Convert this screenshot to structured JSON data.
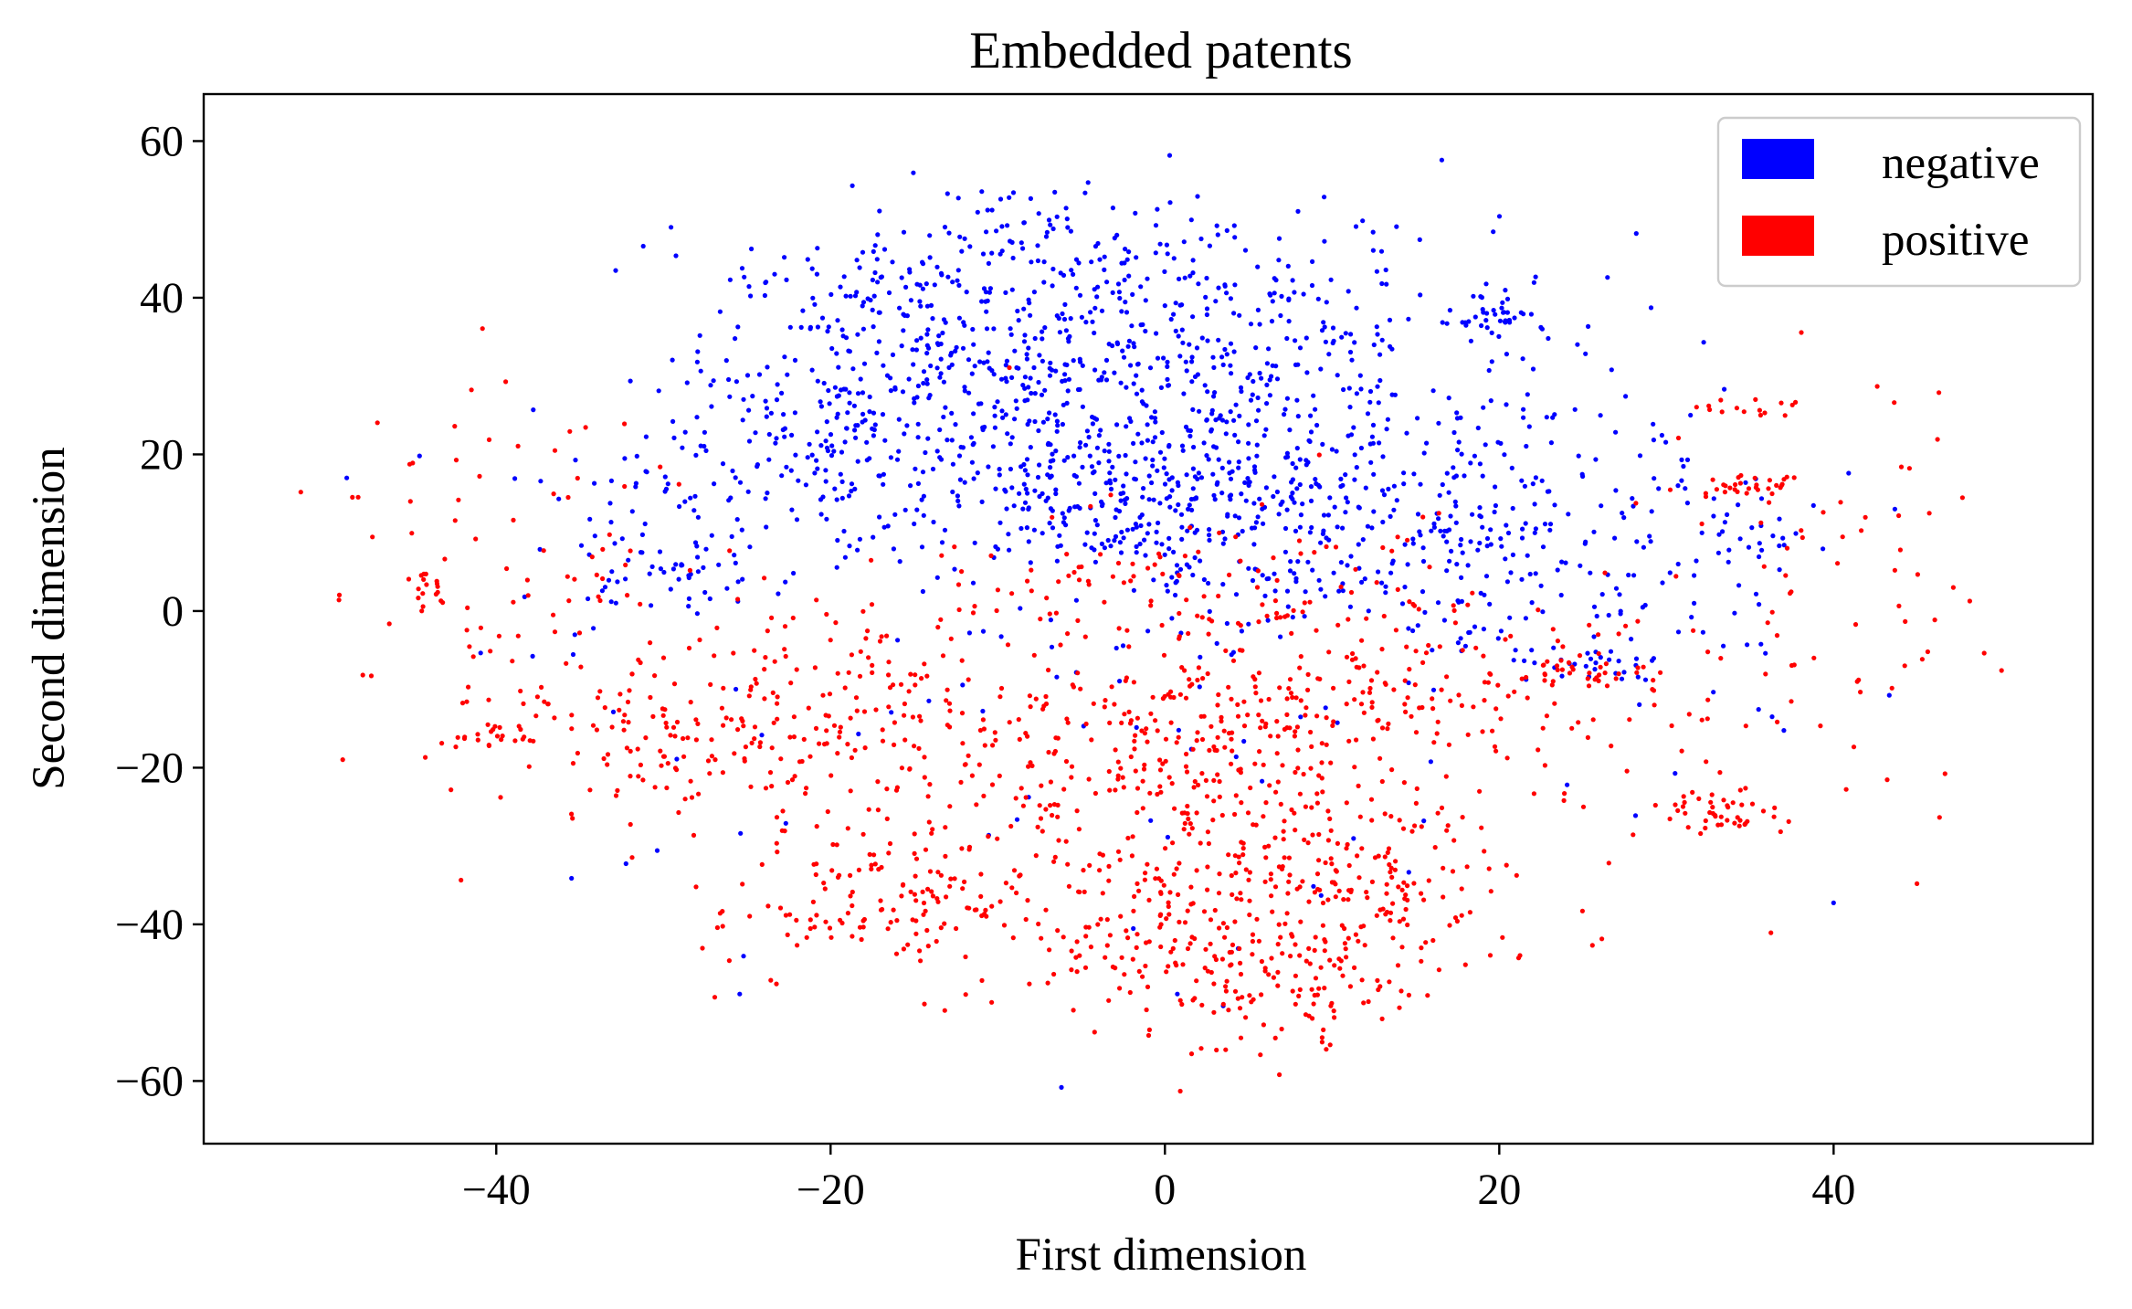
{
  "chart_data": {
    "type": "scatter",
    "title": "Embedded patents",
    "xlabel": "First dimension",
    "ylabel": "Second dimension",
    "xlim": [
      -57.5,
      55.5
    ],
    "ylim": [
      -68,
      66
    ],
    "xticks": [
      -40,
      -20,
      0,
      20,
      40
    ],
    "yticks": [
      -60,
      -40,
      -20,
      0,
      20,
      40,
      60
    ],
    "xtick_labels": [
      "−40",
      "−20",
      "0",
      "20",
      "40"
    ],
    "ytick_labels": [
      "−60",
      "−40",
      "−20",
      "0",
      "20",
      "40",
      "60"
    ],
    "grid": false,
    "legend_position": "top-right",
    "series": [
      {
        "name": "negative",
        "color": "#0000ff",
        "clusters": [
          {
            "cx": -2,
            "cy": 15,
            "sx": 6,
            "sy": 5,
            "n": 260
          },
          {
            "cx": -12,
            "cy": 30,
            "sx": 8,
            "sy": 8,
            "n": 320
          },
          {
            "cx": 6,
            "cy": 30,
            "sx": 9,
            "sy": 9,
            "n": 300
          },
          {
            "cx": -20,
            "cy": 20,
            "sx": 6,
            "sy": 8,
            "n": 150
          },
          {
            "cx": 15,
            "cy": 15,
            "sx": 7,
            "sy": 6,
            "n": 150
          },
          {
            "cx": -4,
            "cy": 44,
            "sx": 9,
            "sy": 5,
            "n": 120
          },
          {
            "cx": 20,
            "cy": 38,
            "sx": 1.2,
            "sy": 1.2,
            "n": 30
          },
          {
            "cx": 25,
            "cy": -7,
            "sx": 2.5,
            "sy": 1.2,
            "n": 30
          },
          {
            "cx": -28,
            "cy": 5,
            "sx": 2,
            "sy": 1.5,
            "n": 25
          },
          {
            "cx": 18,
            "cy": 10,
            "sx": 2,
            "sy": 1.5,
            "n": 20
          },
          {
            "cx": -30,
            "cy": 10,
            "sx": 5,
            "sy": 8,
            "n": 60
          },
          {
            "cx": 30,
            "cy": 10,
            "sx": 5,
            "sy": 10,
            "n": 60
          },
          {
            "cx": 36,
            "cy": 9,
            "sx": 2,
            "sy": 1,
            "n": 15
          },
          {
            "cx": 12,
            "cy": 3,
            "sx": 10,
            "sy": 4,
            "n": 140
          },
          {
            "cx": -16,
            "cy": 40,
            "sx": 5,
            "sy": 4,
            "n": 60
          },
          {
            "cx": -10,
            "cy": 50,
            "sx": 3,
            "sy": 2,
            "n": 25
          },
          {
            "cx": 0,
            "cy": 0,
            "sx": 25,
            "sy": 25,
            "n": 150
          }
        ]
      },
      {
        "name": "positive",
        "color": "#ff0000",
        "clusters": [
          {
            "cx": 1,
            "cy": -20,
            "sx": 7,
            "sy": 10,
            "n": 330
          },
          {
            "cx": -15,
            "cy": -38,
            "sx": 5,
            "sy": 4,
            "n": 140
          },
          {
            "cx": 1,
            "cy": -42,
            "sx": 4,
            "sy": 5,
            "n": 110
          },
          {
            "cx": 12,
            "cy": -35,
            "sx": 4,
            "sy": 6,
            "n": 160
          },
          {
            "cx": 7,
            "cy": -48,
            "sx": 4,
            "sy": 4,
            "n": 80
          },
          {
            "cx": -28,
            "cy": -15,
            "sx": 5,
            "sy": 6,
            "n": 130
          },
          {
            "cx": -18,
            "cy": -15,
            "sx": 5,
            "sy": 7,
            "n": 120
          },
          {
            "cx": 15,
            "cy": -10,
            "sx": 8,
            "sy": 6,
            "n": 170
          },
          {
            "cx": 34,
            "cy": -26,
            "sx": 2,
            "sy": 1.5,
            "n": 45
          },
          {
            "cx": 35,
            "cy": 16,
            "sx": 1.5,
            "sy": 1,
            "n": 30
          },
          {
            "cx": 25,
            "cy": -8,
            "sx": 2,
            "sy": 1,
            "n": 25
          },
          {
            "cx": -40,
            "cy": -16,
            "sx": 1.5,
            "sy": 0.8,
            "n": 20
          },
          {
            "cx": -44,
            "cy": 2,
            "sx": 0.8,
            "sy": 1.5,
            "n": 15
          },
          {
            "cx": 35,
            "cy": 26,
            "sx": 1.5,
            "sy": 0.8,
            "n": 15
          },
          {
            "cx": -40,
            "cy": 5,
            "sx": 6,
            "sy": 14,
            "n": 80
          },
          {
            "cx": 40,
            "cy": 0,
            "sx": 7,
            "sy": 14,
            "n": 70
          },
          {
            "cx": 0,
            "cy": 5,
            "sx": 10,
            "sy": 4,
            "n": 70
          },
          {
            "cx": 0,
            "cy": -20,
            "sx": 25,
            "sy": 20,
            "n": 160
          }
        ]
      }
    ]
  }
}
